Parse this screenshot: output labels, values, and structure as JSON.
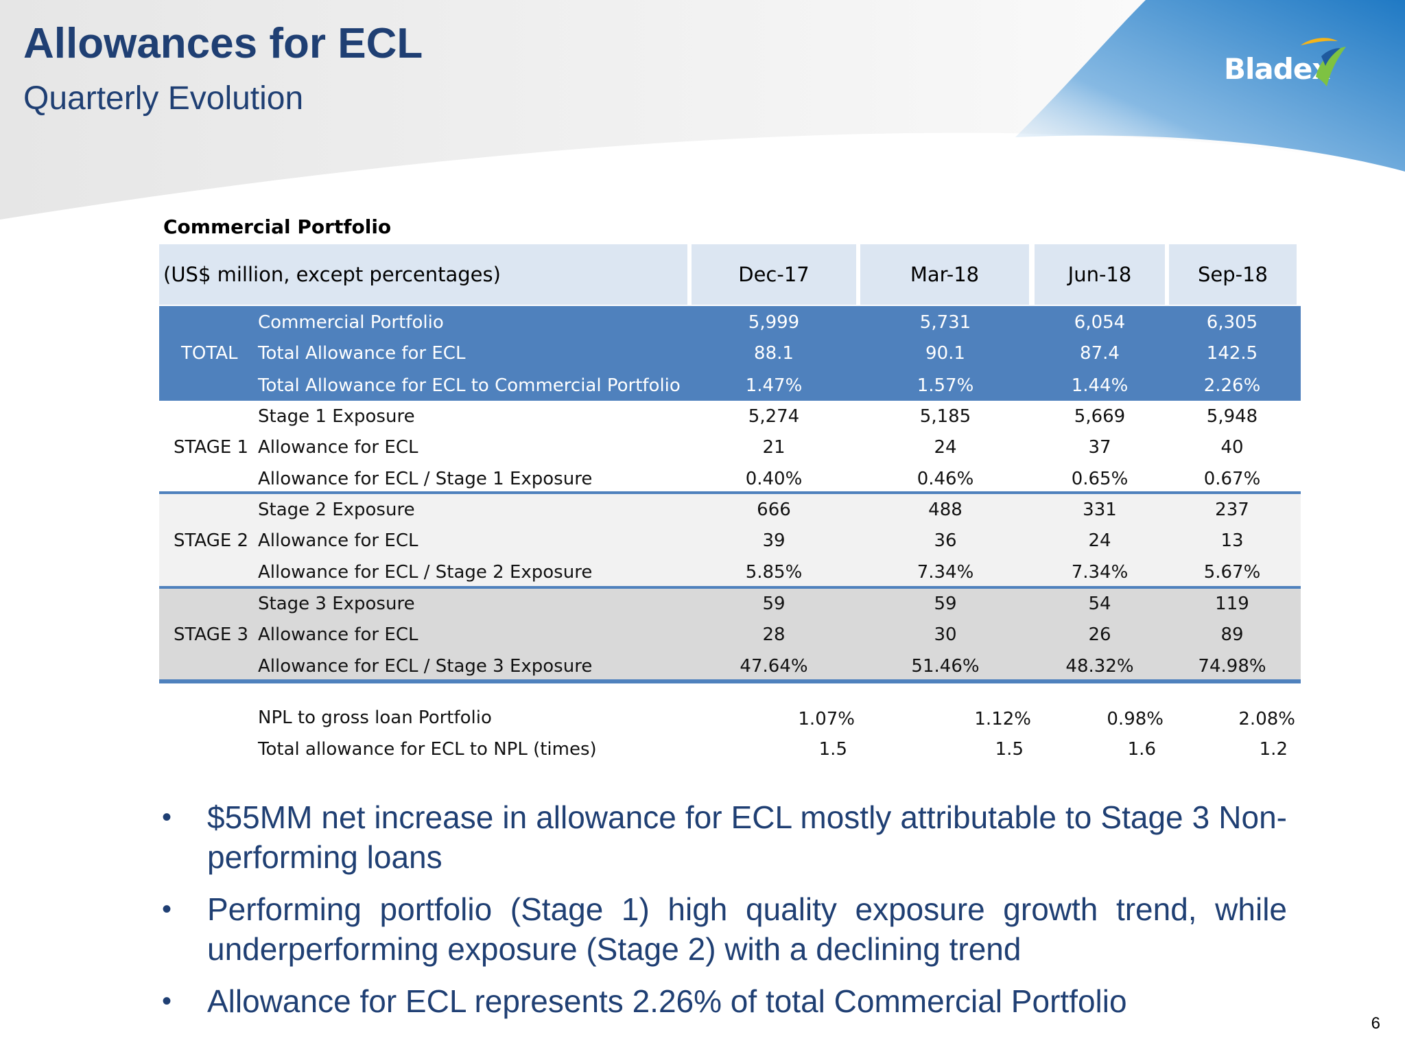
{
  "header": {
    "title": "Allowances for ECL",
    "subtitle": "Quarterly Evolution",
    "logo_text": "Bladex"
  },
  "colors": {
    "title": "#1f3f73",
    "total_band": "#4f81bd",
    "header_cells": "#dce6f2",
    "stage2_band": "#f2f2f2",
    "stage3_band": "#d9d9d9",
    "logo_blue": "#2a7cc7"
  },
  "table": {
    "caption": "Commercial Portfolio",
    "unit_header": "(US$ million, except percentages)",
    "columns": [
      "Dec-17",
      "Mar-18",
      "Jun-18",
      "Sep-18"
    ],
    "groups": [
      {
        "label": "TOTAL",
        "rows": [
          {
            "label": "Commercial Portfolio",
            "values": [
              "5,999",
              "5,731",
              "6,054",
              "6,305"
            ]
          },
          {
            "label": "Total Allowance for ECL",
            "values": [
              "88.1",
              "90.1",
              "87.4",
              "142.5"
            ]
          },
          {
            "label": "Total Allowance for ECL to Commercial Portfolio",
            "values": [
              "1.47%",
              "1.57%",
              "1.44%",
              "2.26%"
            ]
          }
        ]
      },
      {
        "label": "STAGE 1",
        "rows": [
          {
            "label": "Stage 1 Exposure",
            "values": [
              "5,274",
              "5,185",
              "5,669",
              "5,948"
            ]
          },
          {
            "label": "Allowance for ECL",
            "values": [
              "21",
              "24",
              "37",
              "40"
            ]
          },
          {
            "label": "Allowance for ECL / Stage 1 Exposure",
            "values": [
              "0.40%",
              "0.46%",
              "0.65%",
              "0.67%"
            ]
          }
        ]
      },
      {
        "label": "STAGE 2",
        "rows": [
          {
            "label": "Stage 2 Exposure",
            "values": [
              "666",
              "488",
              "331",
              "237"
            ]
          },
          {
            "label": "Allowance for ECL",
            "values": [
              "39",
              "36",
              "24",
              "13"
            ]
          },
          {
            "label": "Allowance for ECL / Stage 2 Exposure",
            "values": [
              "5.85%",
              "7.34%",
              "7.34%",
              "5.67%"
            ]
          }
        ]
      },
      {
        "label": "STAGE 3",
        "rows": [
          {
            "label": "Stage 3 Exposure",
            "values": [
              "59",
              "59",
              "54",
              "119"
            ]
          },
          {
            "label": "Allowance for ECL",
            "values": [
              "28",
              "30",
              "26",
              "89"
            ]
          },
          {
            "label": "Allowance for ECL / Stage 3 Exposure",
            "values": [
              "47.64%",
              "51.46%",
              "48.32%",
              "74.98%"
            ]
          }
        ]
      }
    ],
    "footer_rows": [
      {
        "label": "NPL to gross loan Portfolio",
        "values": [
          "1.07%",
          "1.12%",
          "0.98%",
          "2.08%"
        ]
      },
      {
        "label": "Total allowance for ECL to NPL (times)",
        "values": [
          "1.5",
          "1.5",
          "1.6",
          "1.2"
        ]
      }
    ]
  },
  "bullets": [
    "$55MM net increase in allowance for ECL mostly attributable to Stage 3 Non-performing loans",
    "Performing portfolio (Stage 1) high quality exposure growth trend, while underperforming exposure (Stage 2) with a declining trend",
    "Allowance for ECL represents 2.26% of total Commercial Portfolio"
  ],
  "page_number": "6"
}
